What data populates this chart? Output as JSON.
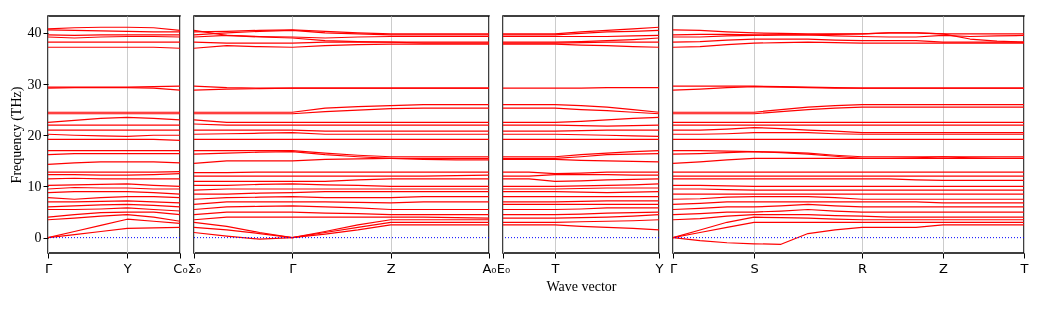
{
  "chart_data": [
    {
      "type": "line",
      "ylabel": "Frequency (THz)",
      "categories": [
        "Γ",
        null,
        null,
        "Y",
        null,
        "C₀"
      ],
      "ylim": [
        -3,
        43.3
      ],
      "yticks": [
        0,
        10,
        20,
        30,
        40
      ],
      "grid": "x",
      "ref_lines": [
        {
          "axis": "y",
          "value": 0,
          "color": "#0000ff",
          "line_style": "dotted"
        }
      ],
      "series": [
        {
          "color": "#ff0000",
          "values": [
            0,
            0.6,
            1.2,
            1.8,
            1.9,
            2.0
          ]
        },
        {
          "color": "#ff0000",
          "values": [
            0,
            1.2,
            2.4,
            3.6,
            3.2,
            2.8
          ]
        },
        {
          "color": "#ff0000",
          "values": [
            3.5,
            3.8,
            4.2,
            4.5,
            4,
            3.2
          ]
        },
        {
          "color": "#ff0000",
          "values": [
            4,
            4.5,
            4.9,
            5,
            5,
            4.5
          ]
        },
        {
          "color": "#ff0000",
          "values": [
            5.5,
            5.5,
            5.6,
            5.8,
            5.5,
            5.2
          ]
        },
        {
          "color": "#ff0000",
          "values": [
            6,
            6.2,
            6.4,
            6.5,
            6.3,
            6
          ]
        },
        {
          "color": "#ff0000",
          "values": [
            7,
            7,
            7.1,
            7.2,
            7,
            6.8
          ]
        },
        {
          "color": "#ff0000",
          "values": [
            7.8,
            7.5,
            7.8,
            8,
            8,
            7.8
          ]
        },
        {
          "color": "#ff0000",
          "values": [
            8.8,
            9,
            9,
            9,
            8.8,
            8.5
          ]
        },
        {
          "color": "#ff0000",
          "values": [
            9.5,
            9.8,
            9.7,
            9.7,
            9.5,
            9.5
          ]
        },
        {
          "color": "#ff0000",
          "values": [
            10.2,
            10.3,
            10.4,
            10.5,
            10.2,
            10
          ]
        },
        {
          "color": "#ff0000",
          "values": [
            11.5,
            11.6,
            11.5,
            11.5,
            11.5,
            11.5
          ]
        },
        {
          "color": "#ff0000",
          "values": [
            12.3,
            12.3,
            12.2,
            12.2,
            12.3,
            12.5
          ]
        },
        {
          "color": "#ff0000",
          "values": [
            12.8,
            12.8,
            12.8,
            12.8,
            12.8,
            12.9
          ]
        },
        {
          "color": "#ff0000",
          "values": [
            14.3,
            14.6,
            14.8,
            14.8,
            14.8,
            14.6
          ]
        },
        {
          "color": "#ff0000",
          "values": [
            16.2,
            16.4,
            16.4,
            16.4,
            16.4,
            16.4
          ]
        },
        {
          "color": "#ff0000",
          "values": [
            17,
            17,
            17,
            17,
            17,
            17
          ]
        },
        {
          "color": "#ff0000",
          "values": [
            19.2,
            19.2,
            19.2,
            19.2,
            19.2,
            19
          ]
        },
        {
          "color": "#ff0000",
          "values": [
            20.2,
            20,
            19.9,
            19.8,
            20,
            20
          ]
        },
        {
          "color": "#ff0000",
          "values": [
            21,
            21,
            21,
            21,
            21,
            21
          ]
        },
        {
          "color": "#ff0000",
          "values": [
            22,
            22,
            22,
            22,
            22,
            22
          ]
        },
        {
          "color": "#ff0000",
          "values": [
            22.5,
            22.9,
            23.3,
            23.5,
            23.3,
            23
          ]
        },
        {
          "color": "#ff0000",
          "values": [
            24.2,
            24.2,
            24.2,
            24.2,
            24.2,
            24.2
          ]
        },
        {
          "color": "#ff0000",
          "values": [
            24.5,
            24.5,
            24.5,
            24.5,
            24.5,
            24.5
          ]
        },
        {
          "color": "#ff0000",
          "values": [
            29.2,
            29.3,
            29.3,
            29.3,
            29.2,
            28.8
          ]
        },
        {
          "color": "#ff0000",
          "values": [
            29.4,
            29.4,
            29.4,
            29.4,
            29.5,
            29.6
          ]
        },
        {
          "color": "#ff0000",
          "values": [
            37.2,
            37.2,
            37.2,
            37.2,
            37.2,
            37
          ]
        },
        {
          "color": "#ff0000",
          "values": [
            38.2,
            38.2,
            38.2,
            38.2,
            38.2,
            38.2
          ]
        },
        {
          "color": "#ff0000",
          "values": [
            39.2,
            39,
            39.2,
            39.3,
            39.3,
            39.2
          ]
        },
        {
          "color": "#ff0000",
          "values": [
            39.6,
            39.5,
            39.6,
            39.6,
            39.6,
            39.6
          ]
        },
        {
          "color": "#ff0000",
          "values": [
            40.6,
            40.5,
            40.4,
            40.3,
            40.2,
            40.2
          ]
        },
        {
          "color": "#ff0000",
          "values": [
            40.8,
            41,
            41.1,
            41.1,
            41,
            40.5
          ]
        }
      ]
    },
    {
      "type": "line",
      "categories": [
        "Σ₀",
        null,
        null,
        "Γ",
        null,
        null,
        "Z",
        null,
        null,
        "A₀"
      ],
      "ylim": [
        -3,
        43.3
      ],
      "yticks": [
        0,
        10,
        20,
        30,
        40
      ],
      "tick_labels": "x",
      "grid": "x",
      "ref_lines": [
        {
          "axis": "y",
          "value": 0,
          "color": "#0000ff",
          "line_style": "dotted"
        }
      ],
      "series": [
        {
          "color": "#ff0000",
          "values": [
            2,
            1.5,
            0.8,
            0,
            0.7,
            1.5,
            2.5,
            2.5,
            2.5,
            2.5
          ]
        },
        {
          "color": "#ff0000",
          "values": [
            1,
            0.3,
            -0.3,
            0,
            1,
            2,
            3,
            3,
            3,
            3
          ]
        },
        {
          "color": "#ff0000",
          "values": [
            3,
            2.2,
            1,
            0,
            1.2,
            2.5,
            3.5,
            3.5,
            3.5,
            3.5
          ]
        },
        {
          "color": "#ff0000",
          "values": [
            3.5,
            4,
            4,
            4,
            4,
            4,
            4,
            4,
            3.9,
            3.8
          ]
        },
        {
          "color": "#ff0000",
          "values": [
            4.5,
            5,
            5,
            5,
            4.8,
            4.7,
            4.5,
            4.5,
            4.5,
            4.5
          ]
        },
        {
          "color": "#ff0000",
          "values": [
            5.5,
            6,
            6.1,
            6.2,
            6,
            5.8,
            5.5,
            5.5,
            5.5,
            5.5
          ]
        },
        {
          "color": "#ff0000",
          "values": [
            6.5,
            7,
            7,
            7,
            7,
            6.9,
            6.8,
            7,
            7,
            7
          ]
        },
        {
          "color": "#ff0000",
          "values": [
            7.5,
            7.8,
            7.9,
            8,
            7.8,
            7.8,
            7.8,
            8,
            8,
            8
          ]
        },
        {
          "color": "#ff0000",
          "values": [
            8.5,
            8.5,
            8.7,
            8.8,
            9,
            9,
            9,
            9,
            9,
            9
          ]
        },
        {
          "color": "#ff0000",
          "values": [
            9.3,
            9.5,
            9.5,
            9.5,
            9.5,
            9.5,
            9.5,
            9.5,
            9.5,
            9.5
          ]
        },
        {
          "color": "#ff0000",
          "values": [
            10.2,
            10.2,
            10.4,
            10.5,
            10.3,
            10.2,
            10,
            10,
            10,
            10
          ]
        },
        {
          "color": "#ff0000",
          "values": [
            11,
            11,
            11,
            11,
            11,
            11.3,
            11.5,
            11.5,
            11.5,
            11.5
          ]
        },
        {
          "color": "#ff0000",
          "values": [
            12,
            12,
            12,
            12,
            12,
            12,
            12,
            12,
            12.1,
            12.2
          ]
        },
        {
          "color": "#ff0000",
          "values": [
            12.7,
            12.7,
            12.8,
            12.8,
            12.8,
            12.8,
            12.8,
            12.8,
            12.8,
            12.8
          ]
        },
        {
          "color": "#ff0000",
          "values": [
            14.5,
            15,
            15,
            15,
            15.3,
            15.4,
            15.5,
            15.5,
            15.5,
            15.5
          ]
        },
        {
          "color": "#ff0000",
          "values": [
            16.3,
            16.5,
            16.7,
            16.8,
            16.2,
            15.8,
            15.5,
            15.3,
            15.2,
            15.2
          ]
        },
        {
          "color": "#ff0000",
          "values": [
            17,
            17,
            17,
            17,
            16.5,
            16.1,
            15.8,
            15.8,
            15.8,
            15.8
          ]
        },
        {
          "color": "#ff0000",
          "values": [
            19.2,
            19.2,
            19.2,
            19.2,
            19.2,
            19.2,
            19.2,
            19.2,
            19.2,
            19.2
          ]
        },
        {
          "color": "#ff0000",
          "values": [
            20.2,
            20.3,
            20.4,
            20.5,
            20.2,
            20.2,
            20.2,
            20.2,
            20.2,
            20.2
          ]
        },
        {
          "color": "#ff0000",
          "values": [
            21,
            21,
            21,
            21,
            20.8,
            20.8,
            20.8,
            20.8,
            20.8,
            20.8
          ]
        },
        {
          "color": "#ff0000",
          "values": [
            22.2,
            22,
            22,
            22,
            22,
            22,
            22,
            22,
            22,
            22
          ]
        },
        {
          "color": "#ff0000",
          "values": [
            23,
            22.5,
            22.5,
            22.5,
            22.5,
            22.5,
            22.5,
            22.5,
            22.5,
            22.5
          ]
        },
        {
          "color": "#ff0000",
          "values": [
            24.2,
            24.2,
            24.2,
            24.2,
            24.6,
            24.9,
            25.2,
            25.3,
            25.3,
            25.3
          ]
        },
        {
          "color": "#ff0000",
          "values": [
            24.5,
            24.5,
            24.5,
            24.5,
            25.3,
            25.6,
            25.8,
            26,
            26,
            26
          ]
        },
        {
          "color": "#ff0000",
          "values": [
            29.6,
            29.3,
            29.2,
            29.2,
            29.2,
            29.2,
            29.2,
            29.2,
            29.2,
            29.2
          ]
        },
        {
          "color": "#ff0000",
          "values": [
            28.8,
            29,
            29.1,
            29.2,
            29.2,
            29.2,
            29.2,
            29.2,
            29.2,
            29.2
          ]
        },
        {
          "color": "#ff0000",
          "values": [
            37,
            37.5,
            37.3,
            37.2,
            37.5,
            37.7,
            37.8,
            37.8,
            37.8,
            37.8
          ]
        },
        {
          "color": "#ff0000",
          "values": [
            38.2,
            38,
            38,
            38,
            38.2,
            38.2,
            38.2,
            38,
            38,
            38
          ]
        },
        {
          "color": "#ff0000",
          "values": [
            39.2,
            39.5,
            39.3,
            39.2,
            39,
            39.2,
            39.3,
            39.3,
            39.3,
            39.3
          ]
        },
        {
          "color": "#ff0000",
          "values": [
            39.6,
            40,
            40.3,
            40.5,
            40,
            39.8,
            39.6,
            39.6,
            39.6,
            39.6
          ]
        },
        {
          "color": "#ff0000",
          "values": [
            40.2,
            40.3,
            40.5,
            40.6,
            40.3,
            40,
            39.8,
            39.8,
            39.8,
            39.8
          ]
        },
        {
          "color": "#ff0000",
          "values": [
            40.5,
            39.5,
            39.2,
            39,
            38.5,
            38.3,
            38.2,
            38.2,
            38.2,
            38.2
          ]
        }
      ]
    },
    {
      "type": "line",
      "xlabel": "Wave vector",
      "categories": [
        "E₀",
        null,
        "T",
        null,
        null,
        null,
        "Y"
      ],
      "ylim": [
        -3,
        43.3
      ],
      "yticks": [
        0,
        10,
        20,
        30,
        40
      ],
      "tick_labels": "x",
      "grid": "x",
      "ref_lines": [
        {
          "axis": "y",
          "value": 0,
          "color": "#0000ff",
          "line_style": "dotted"
        }
      ],
      "series": [
        {
          "color": "#ff0000",
          "values": [
            2.5,
            2.5,
            2.5,
            2.2,
            2,
            1.8,
            1.5
          ]
        },
        {
          "color": "#ff0000",
          "values": [
            3,
            3,
            3,
            3.1,
            3.2,
            3.3,
            3.5
          ]
        },
        {
          "color": "#ff0000",
          "values": [
            3.8,
            3.8,
            3.8,
            3.9,
            4,
            4.2,
            4.5
          ]
        },
        {
          "color": "#ff0000",
          "values": [
            4.5,
            4.5,
            4.5,
            4.6,
            4.8,
            4.9,
            5
          ]
        },
        {
          "color": "#ff0000",
          "values": [
            5.5,
            5.5,
            5.5,
            5.6,
            5.8,
            5.8,
            5.8
          ]
        },
        {
          "color": "#ff0000",
          "values": [
            6.5,
            6.5,
            6.5,
            6.5,
            6.5,
            6.5,
            6.5
          ]
        },
        {
          "color": "#ff0000",
          "values": [
            7,
            7,
            7,
            7.1,
            7.2,
            7.2,
            7.2
          ]
        },
        {
          "color": "#ff0000",
          "values": [
            8,
            8,
            8,
            8,
            8,
            8,
            8
          ]
        },
        {
          "color": "#ff0000",
          "values": [
            9,
            9,
            9,
            8.9,
            8.8,
            8.9,
            9
          ]
        },
        {
          "color": "#ff0000",
          "values": [
            9.5,
            9.5,
            9.5,
            9.6,
            9.7,
            9.7,
            9.7
          ]
        },
        {
          "color": "#ff0000",
          "values": [
            10,
            10,
            10,
            10.1,
            10.2,
            10.3,
            10.5
          ]
        },
        {
          "color": "#ff0000",
          "values": [
            11.5,
            11.5,
            11,
            11.1,
            11.3,
            11.4,
            11.5
          ]
        },
        {
          "color": "#ff0000",
          "values": [
            12,
            12,
            12.3,
            12.3,
            12.3,
            12.2,
            12.2
          ]
        },
        {
          "color": "#ff0000",
          "values": [
            12.8,
            12.8,
            12.5,
            12.6,
            12.8,
            12.8,
            12.8
          ]
        },
        {
          "color": "#ff0000",
          "values": [
            15.3,
            15.3,
            15.3,
            15.1,
            15,
            14.9,
            14.8
          ]
        },
        {
          "color": "#ff0000",
          "values": [
            15.5,
            15.5,
            15.5,
            15.8,
            16.2,
            16.3,
            16.4
          ]
        },
        {
          "color": "#ff0000",
          "values": [
            15.8,
            15.8,
            15.8,
            16.2,
            16.5,
            16.8,
            17
          ]
        },
        {
          "color": "#ff0000",
          "values": [
            19.2,
            19.2,
            19.2,
            19.2,
            19.2,
            19.2,
            19.2
          ]
        },
        {
          "color": "#ff0000",
          "values": [
            20.2,
            20.2,
            20.2,
            20.1,
            20,
            19.9,
            19.8
          ]
        },
        {
          "color": "#ff0000",
          "values": [
            20.8,
            20.8,
            20.8,
            20.9,
            21,
            21,
            21
          ]
        },
        {
          "color": "#ff0000",
          "values": [
            22,
            22,
            22,
            21.9,
            21.8,
            21.9,
            22
          ]
        },
        {
          "color": "#ff0000",
          "values": [
            22.5,
            22.5,
            22.5,
            22.7,
            23,
            23.3,
            23.5
          ]
        },
        {
          "color": "#ff0000",
          "values": [
            25.3,
            25.3,
            25.3,
            25,
            24.8,
            24.5,
            24.2
          ]
        },
        {
          "color": "#ff0000",
          "values": [
            26,
            26,
            26,
            25.8,
            25.5,
            25,
            24.5
          ]
        },
        {
          "color": "#ff0000",
          "values": [
            29.2,
            29.2,
            29.2,
            29.2,
            29.3,
            29.3,
            29.3
          ]
        },
        {
          "color": "#ff0000",
          "values": [
            37.8,
            37.8,
            37.8,
            37.6,
            37.5,
            37.3,
            37.2
          ]
        },
        {
          "color": "#ff0000",
          "values": [
            38,
            38,
            38,
            38.1,
            38.2,
            38.2,
            38.2
          ]
        },
        {
          "color": "#ff0000",
          "values": [
            38.2,
            38.2,
            38.2,
            38.3,
            38.5,
            38.7,
            39
          ]
        },
        {
          "color": "#ff0000",
          "values": [
            39.3,
            39.3,
            39.3,
            39.3,
            39.3,
            39.4,
            39.5
          ]
        },
        {
          "color": "#ff0000",
          "values": [
            39.6,
            39.6,
            39.6,
            39.9,
            40.2,
            40.3,
            40.5
          ]
        },
        {
          "color": "#ff0000",
          "values": [
            39.8,
            39.8,
            39.8,
            40.2,
            40.5,
            40.8,
            41.1
          ]
        }
      ]
    },
    {
      "type": "line",
      "categories": [
        "Γ",
        null,
        null,
        "S",
        null,
        null,
        null,
        "R",
        null,
        null,
        "Z",
        null,
        null,
        "T"
      ],
      "ylim": [
        -3,
        43.3
      ],
      "yticks": [
        0,
        10,
        20,
        30,
        40
      ],
      "tick_labels": "x",
      "grid": "x",
      "ref_lines": [
        {
          "axis": "y",
          "value": 0,
          "color": "#0000ff",
          "line_style": "dotted"
        }
      ],
      "series": [
        {
          "color": "#ff0000",
          "values": [
            0,
            -0.6,
            -1,
            -1.2,
            -1.3,
            0.8,
            1.5,
            2,
            2,
            2,
            2.5,
            2.5,
            2.5,
            2.5
          ]
        },
        {
          "color": "#ff0000",
          "values": [
            0,
            1,
            2,
            3,
            3,
            3,
            3,
            3,
            3,
            3,
            3,
            3,
            3,
            3
          ]
        },
        {
          "color": "#ff0000",
          "values": [
            0,
            1.5,
            3,
            4,
            3.9,
            3.8,
            3.6,
            3.5,
            3.5,
            3.5,
            3.5,
            3.5,
            3.5,
            3.5
          ]
        },
        {
          "color": "#ff0000",
          "values": [
            3.5,
            3.7,
            4.2,
            4.5,
            4.5,
            4.5,
            4.3,
            4.2,
            4,
            4,
            4,
            4,
            4,
            4
          ]
        },
        {
          "color": "#ff0000",
          "values": [
            4.5,
            4.7,
            5,
            5,
            5.2,
            5.5,
            5.2,
            5,
            5,
            5,
            5,
            5,
            5,
            5
          ]
        },
        {
          "color": "#ff0000",
          "values": [
            5.5,
            5.7,
            6,
            6,
            6.2,
            6.5,
            6.2,
            6,
            6,
            6,
            6,
            6,
            6,
            6
          ]
        },
        {
          "color": "#ff0000",
          "values": [
            6.5,
            6.7,
            7,
            7,
            7,
            7,
            7,
            7,
            7,
            7,
            6.8,
            6.8,
            6.8,
            6.8
          ]
        },
        {
          "color": "#ff0000",
          "values": [
            7.5,
            7.6,
            7.9,
            8,
            8,
            8,
            7.8,
            7.5,
            7.5,
            7.5,
            7.5,
            7.5,
            7.5,
            7.5
          ]
        },
        {
          "color": "#ff0000",
          "values": [
            8.5,
            8.5,
            8.5,
            8.5,
            8.5,
            8.5,
            8.5,
            8.5,
            8.5,
            8.5,
            8.5,
            8.5,
            8.5,
            8.5
          ]
        },
        {
          "color": "#ff0000",
          "values": [
            9.5,
            9.5,
            9.4,
            9.3,
            9.3,
            9.3,
            9.3,
            9.3,
            9.3,
            9.3,
            9.3,
            9.3,
            9.3,
            9.3
          ]
        },
        {
          "color": "#ff0000",
          "values": [
            10.2,
            10.2,
            10.1,
            10,
            10,
            10,
            10,
            10,
            10,
            10,
            10,
            10,
            10,
            10
          ]
        },
        {
          "color": "#ff0000",
          "values": [
            11.5,
            11.5,
            11.5,
            11.5,
            11.5,
            11.5,
            11.5,
            11.5,
            11.5,
            11.3,
            11.2,
            11.2,
            11.2,
            11.2
          ]
        },
        {
          "color": "#ff0000",
          "values": [
            12,
            12,
            12,
            12,
            12,
            12,
            12,
            12,
            12,
            12,
            12,
            12,
            12,
            12
          ]
        },
        {
          "color": "#ff0000",
          "values": [
            12.8,
            12.8,
            12.8,
            12.8,
            12.8,
            12.8,
            12.8,
            12.8,
            12.8,
            12.8,
            12.8,
            12.8,
            12.8,
            12.8
          ]
        },
        {
          "color": "#ff0000",
          "values": [
            14.5,
            14.8,
            15.2,
            15.5,
            15.5,
            15.5,
            15.5,
            15.5,
            15.5,
            15.6,
            15.8,
            15.6,
            15.5,
            15.5
          ]
        },
        {
          "color": "#ff0000",
          "values": [
            16.3,
            16.4,
            16.6,
            16.8,
            16.6,
            16.3,
            15.9,
            15.5,
            15.5,
            15.5,
            15.5,
            15.5,
            15.5,
            15.5
          ]
        },
        {
          "color": "#ff0000",
          "values": [
            17,
            17,
            16.9,
            16.8,
            16.7,
            16.5,
            16.1,
            15.8,
            15.8,
            15.8,
            15.8,
            15.8,
            15.8,
            15.8
          ]
        },
        {
          "color": "#ff0000",
          "values": [
            19.2,
            19.2,
            19.2,
            19.2,
            19.2,
            19.2,
            19.2,
            19.2,
            19.2,
            19.2,
            19.2,
            19.2,
            19.2,
            19.2
          ]
        },
        {
          "color": "#ff0000",
          "values": [
            20.2,
            20.2,
            20.3,
            20.5,
            20.5,
            20.5,
            20.3,
            20.2,
            20.2,
            20.2,
            20.2,
            20.2,
            20.2,
            20.2
          ]
        },
        {
          "color": "#ff0000",
          "values": [
            21,
            21,
            21.2,
            21.5,
            21.3,
            21,
            20.8,
            20.5,
            20.5,
            20.5,
            20.5,
            20.5,
            20.5,
            20.5
          ]
        },
        {
          "color": "#ff0000",
          "values": [
            22,
            22,
            22,
            22,
            22,
            22,
            22,
            22,
            22,
            22,
            22,
            22,
            22,
            22
          ]
        },
        {
          "color": "#ff0000",
          "values": [
            22.5,
            22.5,
            22.5,
            22.5,
            22.5,
            22.5,
            22.5,
            22.5,
            22.5,
            22.5,
            22.5,
            22.5,
            22.5,
            22.5
          ]
        },
        {
          "color": "#ff0000",
          "values": [
            24.2,
            24.2,
            24.2,
            24.2,
            24.6,
            25,
            25.3,
            25.5,
            25.5,
            25.5,
            25.5,
            25.5,
            25.5,
            25.5
          ]
        },
        {
          "color": "#ff0000",
          "values": [
            24.5,
            24.5,
            24.5,
            24.5,
            25,
            25.5,
            25.8,
            26,
            26,
            26,
            26,
            26,
            26,
            26
          ]
        },
        {
          "color": "#ff0000",
          "values": [
            28.8,
            29,
            29.3,
            29.5,
            29.4,
            29.3,
            29.2,
            29.2,
            29.2,
            29.2,
            29.2,
            29.2,
            29.2,
            29.2
          ]
        },
        {
          "color": "#ff0000",
          "values": [
            29.6,
            29.6,
            29.6,
            29.6,
            29.5,
            29.4,
            29.3,
            29.2,
            29.2,
            29.2,
            29.2,
            29.2,
            29.2,
            29.2
          ]
        },
        {
          "color": "#ff0000",
          "values": [
            37.2,
            37.3,
            37.7,
            38,
            38.1,
            38.2,
            38.1,
            38,
            38,
            38,
            38,
            38,
            38,
            38
          ]
        },
        {
          "color": "#ff0000",
          "values": [
            38.2,
            38.3,
            38.6,
            38.8,
            38.8,
            38.8,
            38.6,
            38.5,
            38.5,
            38.5,
            38.2,
            38.2,
            38.2,
            38.2
          ]
        },
        {
          "color": "#ff0000",
          "values": [
            39.2,
            39.2,
            39.4,
            39.5,
            39.6,
            39.6,
            39.4,
            39.3,
            39.2,
            39.2,
            39.5,
            39.3,
            39.4,
            39.5
          ]
        },
        {
          "color": "#ff0000",
          "values": [
            39.6,
            39.7,
            39.7,
            39.6,
            39.6,
            39.6,
            39.7,
            39.8,
            40,
            40,
            39.8,
            39.8,
            39.8,
            39.8
          ]
        },
        {
          "color": "#ff0000",
          "values": [
            40.6,
            40.5,
            40.2,
            40,
            39.9,
            39.8,
            39.8,
            39.8,
            40,
            40,
            39.8,
            38.8,
            38.4,
            38.2
          ]
        }
      ]
    }
  ]
}
